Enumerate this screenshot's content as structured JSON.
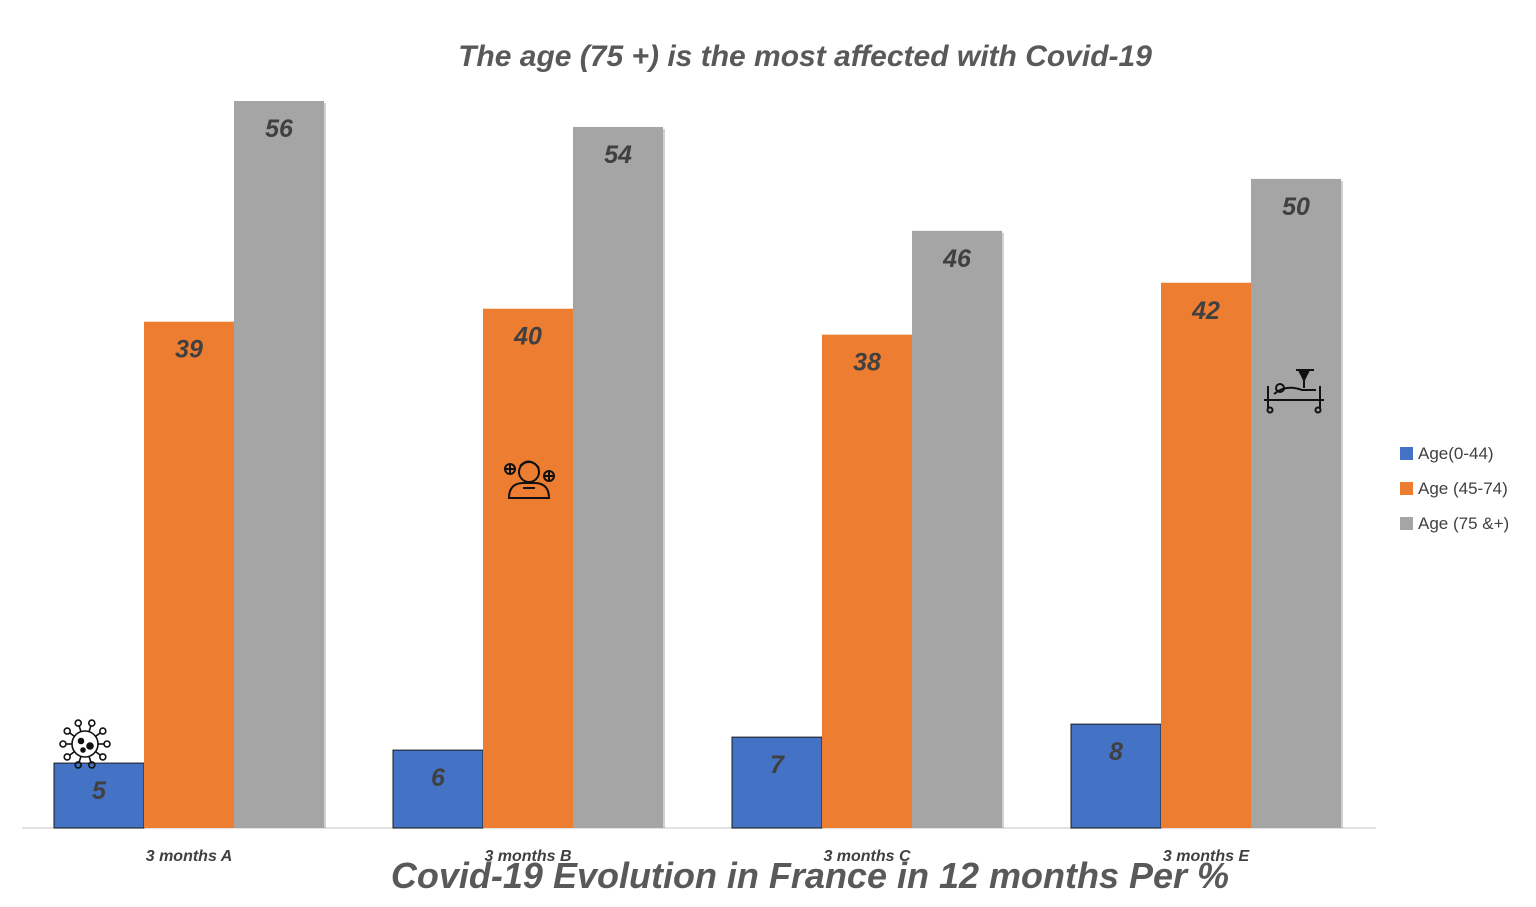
{
  "chart_data": {
    "type": "bar",
    "title": "The age (75  +) is the most affected with Covid-19",
    "xlabel": "Covid-19 Evolution in France in 12 months Per %",
    "ylabel": "",
    "categories": [
      "3 months A",
      "3 months B",
      "3 months C",
      "3 months E"
    ],
    "series": [
      {
        "name": "Age(0-44)",
        "values": [
          5,
          6,
          7,
          8
        ],
        "color": "#4472C4"
      },
      {
        "name": "Age (45-74)",
        "values": [
          39,
          40,
          38,
          42
        ],
        "color": "#ED7D31"
      },
      {
        "name": "Age (75 &+)",
        "values": [
          56,
          54,
          46,
          50
        ],
        "color": "#A5A5A5"
      }
    ],
    "ylim": [
      0,
      56
    ],
    "grid": false,
    "legend": "right",
    "icons": [
      "virus-icon",
      "sick-person-icon",
      "hospital-bed-icon"
    ]
  }
}
